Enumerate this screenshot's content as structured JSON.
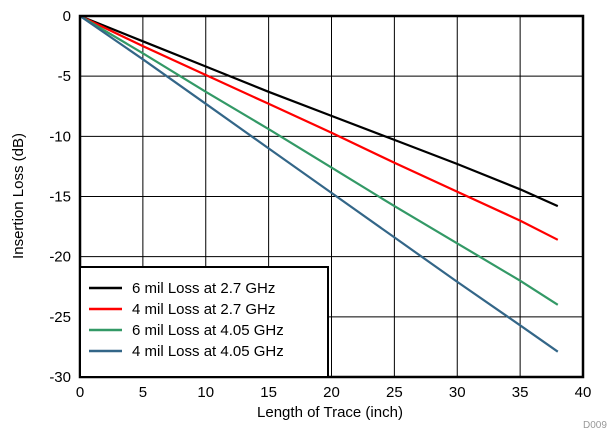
{
  "chart_data": {
    "type": "line",
    "title": "",
    "xlabel": "Length of Trace (inch)",
    "ylabel": "Insertion Loss (dB)",
    "xlim": [
      0,
      40
    ],
    "ylim": [
      -30,
      0
    ],
    "xticks": [
      0,
      5,
      10,
      15,
      20,
      25,
      30,
      35,
      40
    ],
    "yticks": [
      0,
      -5,
      -10,
      -15,
      -20,
      -25,
      -30
    ],
    "grid": true,
    "legend_position": "bottom-left",
    "figure_id": "D009",
    "series": [
      {
        "name": "6 mil Loss at 2.7 GHz",
        "color": "#000000",
        "x": [
          0,
          5,
          10,
          15,
          20,
          25,
          30,
          35,
          38
        ],
        "y": [
          0,
          -2.1,
          -4.2,
          -6.3,
          -8.3,
          -10.3,
          -12.3,
          -14.4,
          -15.8
        ]
      },
      {
        "name": "4 mil Loss at 2.7 GHz",
        "color": "#ff0000",
        "x": [
          0,
          5,
          10,
          15,
          20,
          25,
          30,
          35,
          38
        ],
        "y": [
          0,
          -2.5,
          -4.9,
          -7.3,
          -9.7,
          -12.2,
          -14.6,
          -17.0,
          -18.6
        ]
      },
      {
        "name": "6 mil Loss at 4.05 GHz",
        "color": "#339966",
        "x": [
          0,
          5,
          10,
          15,
          20,
          25,
          30,
          35,
          38
        ],
        "y": [
          0,
          -3.1,
          -6.3,
          -9.4,
          -12.6,
          -15.8,
          -18.9,
          -22.0,
          -24.0
        ]
      },
      {
        "name": "4 mil Loss at 4.05 GHz",
        "color": "#336688",
        "x": [
          0,
          5,
          10,
          15,
          20,
          25,
          30,
          35,
          38
        ],
        "y": [
          0,
          -3.6,
          -7.3,
          -11.0,
          -14.7,
          -18.4,
          -22.1,
          -25.7,
          -27.9
        ]
      }
    ]
  }
}
